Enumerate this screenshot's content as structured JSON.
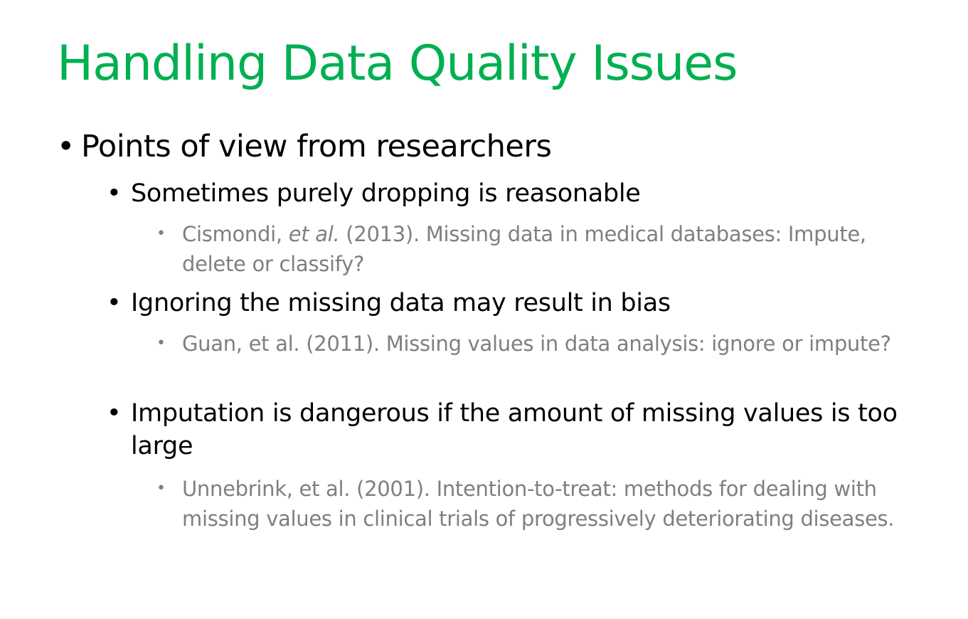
{
  "slide": {
    "title": "Handling Data Quality Issues",
    "colors": {
      "title": "#00B050",
      "body": "#000000",
      "reference": "#7F7F7F"
    },
    "bullet_glyph": "•",
    "level1": {
      "text": "Points of view from researchers"
    },
    "points": [
      {
        "text": "Sometimes purely dropping is reasonable",
        "reference": {
          "author": "Cismondi,",
          "etal": "et al.",
          "rest": " (2013). Missing data in medical databases: Impute, delete or classify?"
        }
      },
      {
        "text": "Ignoring the missing data may result in bias",
        "reference": {
          "full": "Guan, et al. (2011). Missing values in data analysis: ignore or impute?"
        }
      },
      {
        "text": "Imputation is dangerous if the amount of missing values is too large",
        "reference": {
          "full": "Unnebrink, et al. (2001). Intention-to-treat: methods for dealing with missing values in clinical trials of progressively deteriorating diseases."
        }
      }
    ]
  }
}
